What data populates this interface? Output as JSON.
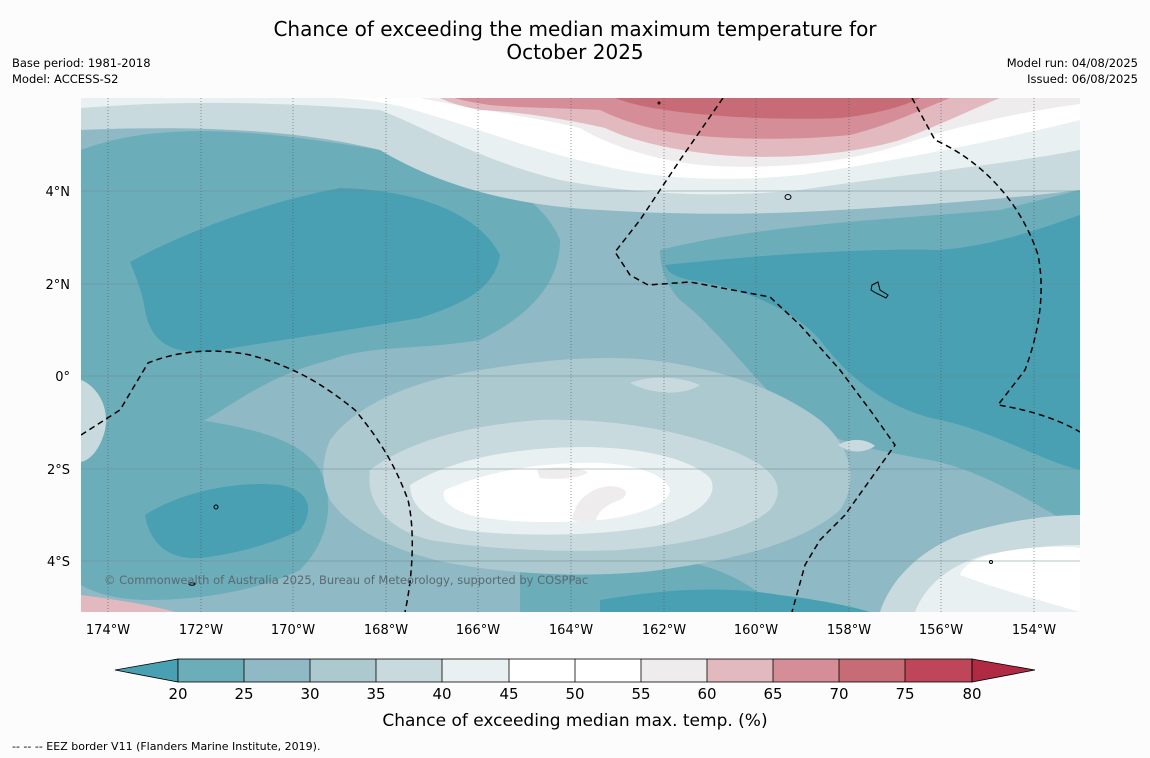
{
  "title": {
    "line1": "Chance of exceeding the median maximum temperature for",
    "line2": "October 2025"
  },
  "meta_left": {
    "base_period": "Base period: 1981-2018",
    "model": "Model: ACCESS-S2"
  },
  "meta_right": {
    "model_run": "Model run: 04/08/2025",
    "issued": "Issued: 06/08/2025"
  },
  "map": {
    "copyright": "© Commonwealth of Australia 2025, Bureau of Meteorology, supported by COSPPac",
    "lon_ticks": [
      "174°W",
      "172°W",
      "170°W",
      "168°W",
      "166°W",
      "164°W",
      "162°W",
      "160°W",
      "158°W",
      "156°W",
      "154°W"
    ],
    "lat_ticks": [
      "4°N",
      "2°N",
      "0°",
      "2°S",
      "4°S"
    ],
    "colors": {
      "lt20": "#4aa0b3",
      "20_25": "#6cadba",
      "25_30": "#8fb9c4",
      "30_35": "#abc9cf",
      "35_40": "#c8dadd",
      "40_45": "#e9f0f1",
      "45_50": "#ffffff",
      "50_55": "#ffffff",
      "55_60": "#eeecec",
      "60_65": "#e1b9bf",
      "65_70": "#d58e98",
      "70_75": "#c76b76",
      "gt80": "#b02a44"
    }
  },
  "colorbar": {
    "ticks": [
      "20",
      "25",
      "30",
      "35",
      "40",
      "45",
      "50",
      "55",
      "60",
      "65",
      "70",
      "75",
      "80"
    ],
    "label": "Chance of exceeding median max. temp. (%)"
  },
  "footer": {
    "legend": "--  --  -- EEZ border V11 (Flanders Marine Institute, 2019)."
  }
}
